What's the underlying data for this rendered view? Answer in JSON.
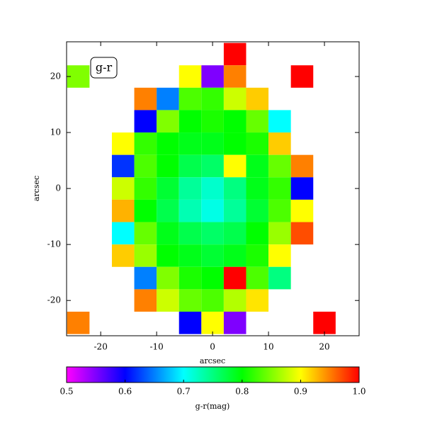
{
  "chart_data": {
    "type": "image",
    "annotation": "g-r",
    "xlabel": "arcsec",
    "ylabel": "arcsec",
    "x": [
      -24,
      -20,
      -16,
      -12,
      -8,
      -4,
      0,
      4,
      8,
      12,
      16,
      20,
      24
    ],
    "y": [
      24,
      20,
      16,
      12,
      8,
      4,
      0,
      -4,
      -8,
      -12,
      -16,
      -20,
      -24
    ],
    "z": [
      [
        null,
        null,
        null,
        null,
        null,
        null,
        null,
        1.0,
        null,
        null,
        null,
        null,
        null
      ],
      [
        0.85,
        null,
        null,
        null,
        null,
        0.9,
        0.55,
        0.95,
        null,
        null,
        1.0,
        null,
        null
      ],
      [
        null,
        null,
        null,
        0.95,
        0.65,
        0.83,
        0.82,
        0.88,
        0.92,
        null,
        null,
        null,
        null
      ],
      [
        null,
        null,
        null,
        0.6,
        0.85,
        0.8,
        0.81,
        0.8,
        0.84,
        0.7,
        null,
        null,
        null
      ],
      [
        null,
        null,
        0.9,
        0.82,
        0.8,
        0.79,
        0.79,
        0.8,
        0.81,
        0.92,
        null,
        null,
        null
      ],
      [
        null,
        null,
        0.62,
        0.83,
        0.8,
        0.77,
        0.76,
        0.9,
        0.79,
        0.84,
        0.95,
        null,
        null
      ],
      [
        null,
        null,
        0.88,
        0.82,
        0.78,
        0.74,
        0.72,
        0.75,
        0.79,
        0.82,
        0.6,
        null,
        null
      ],
      [
        null,
        null,
        0.93,
        0.8,
        0.77,
        0.73,
        0.71,
        0.74,
        0.78,
        0.83,
        0.9,
        null,
        null
      ],
      [
        null,
        null,
        0.7,
        0.84,
        0.79,
        0.77,
        0.76,
        0.77,
        0.8,
        0.86,
        0.97,
        null,
        null
      ],
      [
        null,
        null,
        0.92,
        0.86,
        0.8,
        0.79,
        0.78,
        0.79,
        0.81,
        0.9,
        null,
        null,
        null
      ],
      [
        null,
        null,
        null,
        0.65,
        0.85,
        0.81,
        0.8,
        1.0,
        0.83,
        0.75,
        null,
        null,
        null
      ],
      [
        null,
        null,
        null,
        0.95,
        0.88,
        0.84,
        0.83,
        0.87,
        0.91,
        null,
        null,
        null,
        null
      ],
      [
        0.95,
        null,
        null,
        null,
        null,
        0.6,
        0.9,
        0.55,
        null,
        null,
        null,
        1.0,
        null
      ]
    ],
    "xlim": [
      -26.1,
      26.2
    ],
    "ylim": [
      -26.3,
      26.2
    ],
    "xticks": [
      -20,
      -10,
      0,
      10,
      20
    ],
    "yticks": [
      -20,
      -10,
      0,
      10,
      20
    ],
    "clim": [
      0.5,
      1.0
    ],
    "cmap_colors": [
      "#ff00ff",
      "#0000ff",
      "#00ffff",
      "#00ff00",
      "#ffff00",
      "#ff0000"
    ],
    "cticks": [
      0.5,
      0.6,
      0.7,
      0.8,
      0.9,
      {
        "value": 1.0,
        "label": "1.0"
      }
    ],
    "colorbar_label": "g-r(mag)"
  }
}
